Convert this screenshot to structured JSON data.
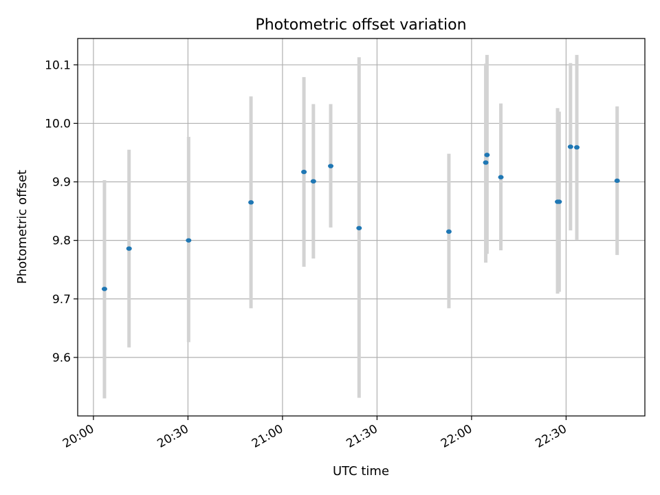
{
  "chart_data": {
    "type": "scatter",
    "title": "Photometric offset variation",
    "xlabel": "UTC time",
    "ylabel": "Photometric offset",
    "x_unit": "minutes since 20:00 UTC",
    "xlim": [
      -5,
      175
    ],
    "ylim": [
      9.5,
      10.145
    ],
    "grid": true,
    "x_ticks": [
      {
        "value": 0,
        "label": "20:00"
      },
      {
        "value": 30,
        "label": "20:30"
      },
      {
        "value": 60,
        "label": "21:00"
      },
      {
        "value": 90,
        "label": "21:30"
      },
      {
        "value": 120,
        "label": "22:00"
      },
      {
        "value": 150,
        "label": "22:30"
      }
    ],
    "y_ticks": [
      {
        "value": 9.6,
        "label": "9.6"
      },
      {
        "value": 9.7,
        "label": "9.7"
      },
      {
        "value": 9.8,
        "label": "9.8"
      },
      {
        "value": 9.9,
        "label": "9.9"
      },
      {
        "value": 10.0,
        "label": "10.0"
      },
      {
        "value": 10.1,
        "label": "10.1"
      }
    ],
    "marker_color": "#1f77b4",
    "errorbar_color": "#d3d3d3",
    "points": [
      {
        "x": 3.5,
        "y": 9.717,
        "ylow": 9.53,
        "yhigh": 9.903
      },
      {
        "x": 11.3,
        "y": 9.786,
        "ylow": 9.617,
        "yhigh": 9.955
      },
      {
        "x": 30.2,
        "y": 9.8,
        "ylow": 9.626,
        "yhigh": 9.977
      },
      {
        "x": 50.0,
        "y": 9.865,
        "ylow": 9.684,
        "yhigh": 10.046
      },
      {
        "x": 66.8,
        "y": 9.917,
        "ylow": 9.755,
        "yhigh": 10.079
      },
      {
        "x": 69.8,
        "y": 9.901,
        "ylow": 9.769,
        "yhigh": 10.033
      },
      {
        "x": 75.3,
        "y": 9.927,
        "ylow": 9.822,
        "yhigh": 10.033
      },
      {
        "x": 84.3,
        "y": 9.821,
        "ylow": 9.531,
        "yhigh": 10.113
      },
      {
        "x": 112.8,
        "y": 9.815,
        "ylow": 9.684,
        "yhigh": 9.948
      },
      {
        "x": 124.5,
        "y": 9.933,
        "ylow": 9.762,
        "yhigh": 10.102
      },
      {
        "x": 124.9,
        "y": 9.946,
        "ylow": 9.777,
        "yhigh": 10.117
      },
      {
        "x": 129.3,
        "y": 9.908,
        "ylow": 9.783,
        "yhigh": 10.034
      },
      {
        "x": 147.3,
        "y": 9.866,
        "ylow": 9.709,
        "yhigh": 10.026
      },
      {
        "x": 147.8,
        "y": 9.866,
        "ylow": 9.712,
        "yhigh": 10.02
      },
      {
        "x": 151.4,
        "y": 9.96,
        "ylow": 9.817,
        "yhigh": 10.103
      },
      {
        "x": 153.4,
        "y": 9.959,
        "ylow": 9.801,
        "yhigh": 10.117
      },
      {
        "x": 166.2,
        "y": 9.902,
        "ylow": 9.775,
        "yhigh": 10.029
      }
    ]
  }
}
